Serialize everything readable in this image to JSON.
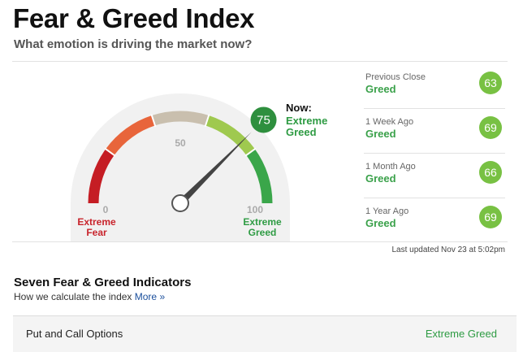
{
  "header": {
    "title": "Fear & Greed Index",
    "subtitle": "What emotion is driving the market now?"
  },
  "gauge": {
    "min": 0,
    "mid": 50,
    "max": 100,
    "value": 75,
    "now_label": "Now:",
    "rating": "Extreme Greed",
    "low_label": "Extreme Fear",
    "high_label": "Extreme Greed"
  },
  "history": [
    {
      "label": "Previous Close",
      "rating": "Greed",
      "value": 63
    },
    {
      "label": "1 Week Ago",
      "rating": "Greed",
      "value": 69
    },
    {
      "label": "1 Month Ago",
      "rating": "Greed",
      "value": 66
    },
    {
      "label": "1 Year Ago",
      "rating": "Greed",
      "value": 69
    }
  ],
  "last_updated": "Last updated Nov 23 at 5:02pm",
  "indicators": {
    "title": "Seven Fear & Greed Indicators",
    "subtitle": "How we calculate the index",
    "more": "More »",
    "rows": [
      {
        "name": "Put and Call Options",
        "rating": "Extreme Greed"
      }
    ]
  }
}
